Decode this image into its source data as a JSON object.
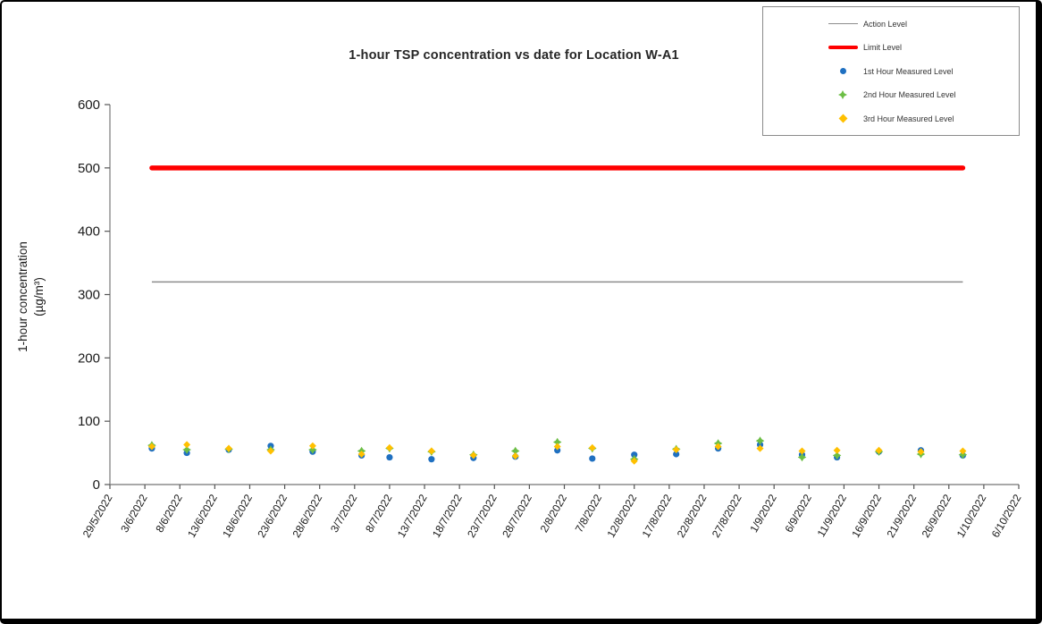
{
  "figure": {
    "title": "1-hour TSP concentration vs date for Location W-A1",
    "y_axis_title_line1": "1-hour concentration",
    "y_axis_title_line2": "(µg/m³)"
  },
  "legend": {
    "position": "top-right",
    "items": [
      {
        "label": "Action Level",
        "type": "thin-line",
        "color": "#8c8c8c"
      },
      {
        "label": "Limit Level",
        "type": "thick-line",
        "color": "#ff0000"
      },
      {
        "label": "1st Hour Measured Level",
        "type": "circle",
        "color": "#1f70c1"
      },
      {
        "label": "2nd Hour Measured Level",
        "type": "star",
        "color": "#6cbe45"
      },
      {
        "label": "3rd Hour Measured Level",
        "type": "diamond",
        "color": "#ffc000"
      }
    ]
  },
  "chart_data": {
    "type": "scatter",
    "title": "1-hour TSP concentration vs date for Location W-A1",
    "xlabel": "",
    "ylabel": "1-hour concentration (µg/m³)",
    "ylim": [
      0,
      600
    ],
    "y_ticks": [
      0,
      100,
      200,
      300,
      400,
      500,
      600
    ],
    "grid": false,
    "x_tick_labels": [
      "29/5/2022",
      "3/6/2022",
      "8/6/2022",
      "13/6/2022",
      "18/6/2022",
      "23/6/2022",
      "28/6/2022",
      "3/7/2022",
      "8/7/2022",
      "13/7/2022",
      "18/7/2022",
      "23/7/2022",
      "28/7/2022",
      "2/8/2022",
      "7/8/2022",
      "12/8/2022",
      "17/8/2022",
      "22/8/2022",
      "27/8/2022",
      "1/9/2022",
      "6/9/2022",
      "11/9/2022",
      "16/9/2022",
      "21/9/2022",
      "26/9/2022",
      "1/10/2022",
      "6/10/2022"
    ],
    "action_level": 320,
    "limit_level": 500,
    "action_level_color": "#8c8c8c",
    "limit_level_color": "#ff0000",
    "reference_line_date_span": [
      "4/6/2022",
      "28/9/2022"
    ],
    "measurement_dates": [
      "4/6/2022",
      "9/6/2022",
      "15/6/2022",
      "21/6/2022",
      "27/6/2022",
      "4/7/2022",
      "8/7/2022",
      "14/7/2022",
      "20/7/2022",
      "26/7/2022",
      "1/8/2022",
      "6/8/2022",
      "12/8/2022",
      "18/8/2022",
      "24/8/2022",
      "30/8/2022",
      "5/9/2022",
      "10/9/2022",
      "16/9/2022",
      "22/9/2022",
      "28/9/2022"
    ],
    "series": [
      {
        "name": "1st Hour Measured Level",
        "marker": "circle",
        "color": "#1f70c1",
        "values": [
          57,
          50,
          55,
          61,
          52,
          46,
          43,
          40,
          42,
          44,
          54,
          41,
          47,
          48,
          57,
          63,
          47,
          43,
          52,
          54,
          46
        ]
      },
      {
        "name": "2nd Hour Measured Level",
        "marker": "star",
        "color": "#6cbe45",
        "values": [
          62,
          55,
          56,
          55,
          55,
          53,
          57,
          52,
          47,
          53,
          67,
          57,
          40,
          56,
          65,
          69,
          43,
          46,
          52,
          48,
          47
        ]
      },
      {
        "name": "3rd Hour Measured Level",
        "marker": "diamond",
        "color": "#ffc000",
        "values": [
          60,
          63,
          57,
          53,
          61,
          48,
          58,
          53,
          46,
          45,
          60,
          58,
          37,
          55,
          60,
          57,
          53,
          54,
          54,
          52,
          53
        ]
      }
    ],
    "axis_color": "#8c8c8c",
    "tick_label_color": "#1a1a1a"
  }
}
